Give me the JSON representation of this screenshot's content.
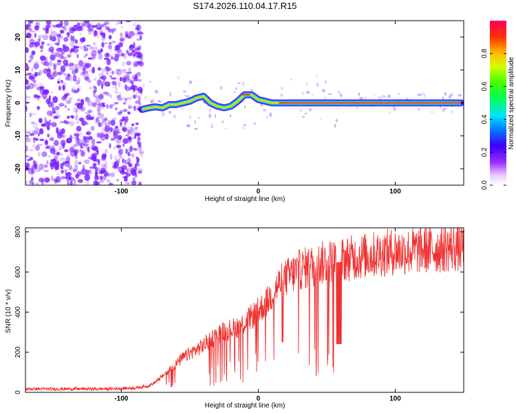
{
  "title": "S174.2026.110.04.17.R15",
  "colors": {
    "line": "#f03030",
    "ridge": "#ff2a2a",
    "scatter": "#7a1cff",
    "frame": "#000000"
  },
  "chart_data": [
    {
      "type": "heatmap",
      "name": "spectrogram",
      "xlabel": "Height of straight line (km)",
      "ylabel": "Frequency (Hz)",
      "xlim": [
        -170,
        150
      ],
      "ylim": [
        -25,
        25
      ],
      "xticks": [
        -100,
        0,
        100
      ],
      "yticks": [
        20,
        10,
        0,
        -10,
        -20
      ],
      "noise_region_x": [
        -170,
        -85
      ],
      "ridge": {
        "x": [
          -85,
          -80,
          -75,
          -70,
          -65,
          -60,
          -55,
          -50,
          -45,
          -40,
          -35,
          -30,
          -25,
          -20,
          -15,
          -10,
          -5,
          0,
          5,
          10,
          15,
          20,
          30,
          40,
          50,
          60,
          70,
          80,
          90,
          100,
          110,
          120,
          130,
          140,
          148
        ],
        "y": [
          -2,
          -1.5,
          -1.2,
          -1.5,
          -0.5,
          -0.5,
          0,
          0.5,
          1.5,
          2,
          0,
          -1,
          -1.5,
          -1,
          0.5,
          2.5,
          2.5,
          1,
          0.5,
          0,
          0,
          0,
          0,
          0,
          0,
          0,
          0,
          0,
          0,
          0,
          0,
          0,
          0,
          0,
          0
        ]
      },
      "colorbar": {
        "label": "Normalized spectral amplitude",
        "range": [
          0,
          1
        ],
        "ticks": [
          "0.0",
          "0.2",
          "0.4",
          "0.6",
          "0.8"
        ]
      }
    },
    {
      "type": "line",
      "name": "snr",
      "xlabel": "Height of straight line (km)",
      "ylabel": "SNR (10 * v/v)",
      "xlim": [
        -170,
        150
      ],
      "ylim": [
        0,
        820
      ],
      "xticks": [
        -100,
        0,
        100
      ],
      "yticks": [
        0,
        200,
        400,
        600,
        800
      ],
      "envelope": {
        "x": [
          -170,
          -140,
          -110,
          -90,
          -80,
          -75,
          -70,
          -65,
          -60,
          -55,
          -50,
          -45,
          -40,
          -35,
          -30,
          -25,
          -20,
          -15,
          -10,
          -5,
          0,
          5,
          10,
          15,
          20,
          25,
          30,
          40,
          50,
          60,
          70,
          80,
          90,
          100,
          110,
          120,
          130,
          140,
          150
        ],
        "y": [
          15,
          15,
          15,
          20,
          30,
          50,
          80,
          110,
          140,
          170,
          190,
          210,
          230,
          260,
          280,
          300,
          310,
          320,
          340,
          370,
          400,
          430,
          480,
          530,
          560,
          580,
          600,
          620,
          640,
          650,
          660,
          670,
          680,
          690,
          690,
          700,
          700,
          710,
          710
        ]
      },
      "dropouts": [
        {
          "x": 57,
          "x2": 61,
          "y": 240
        }
      ]
    }
  ]
}
